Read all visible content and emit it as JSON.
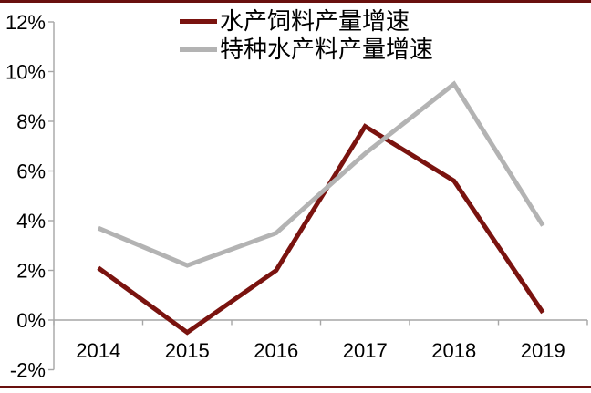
{
  "page": {
    "border_color": "#69100e",
    "background": "#ffffff"
  },
  "chart_data": {
    "type": "line",
    "title": "",
    "xlabel": "",
    "ylabel": "",
    "categories": [
      "2014",
      "2015",
      "2016",
      "2017",
      "2018",
      "2019"
    ],
    "series": [
      {
        "name": "水产饲料产量增速",
        "color": "#7a130f",
        "values": [
          2.1,
          -0.5,
          2.0,
          7.8,
          5.6,
          0.3
        ]
      },
      {
        "name": "特种水产料产量增速",
        "color": "#b3b3b3",
        "values": [
          3.7,
          2.2,
          3.5,
          6.7,
          9.5,
          3.8
        ]
      }
    ],
    "y_ticks": [
      "12%",
      "10%",
      "8%",
      "6%",
      "4%",
      "2%",
      "0%",
      "-2%"
    ],
    "y_tick_values": [
      12,
      10,
      8,
      6,
      4,
      2,
      0,
      -2
    ],
    "ylim": [
      -2,
      12
    ],
    "grid": false,
    "legend_position": "top-center",
    "axis_color": "#a6a6a6",
    "label_color": "#000000"
  }
}
